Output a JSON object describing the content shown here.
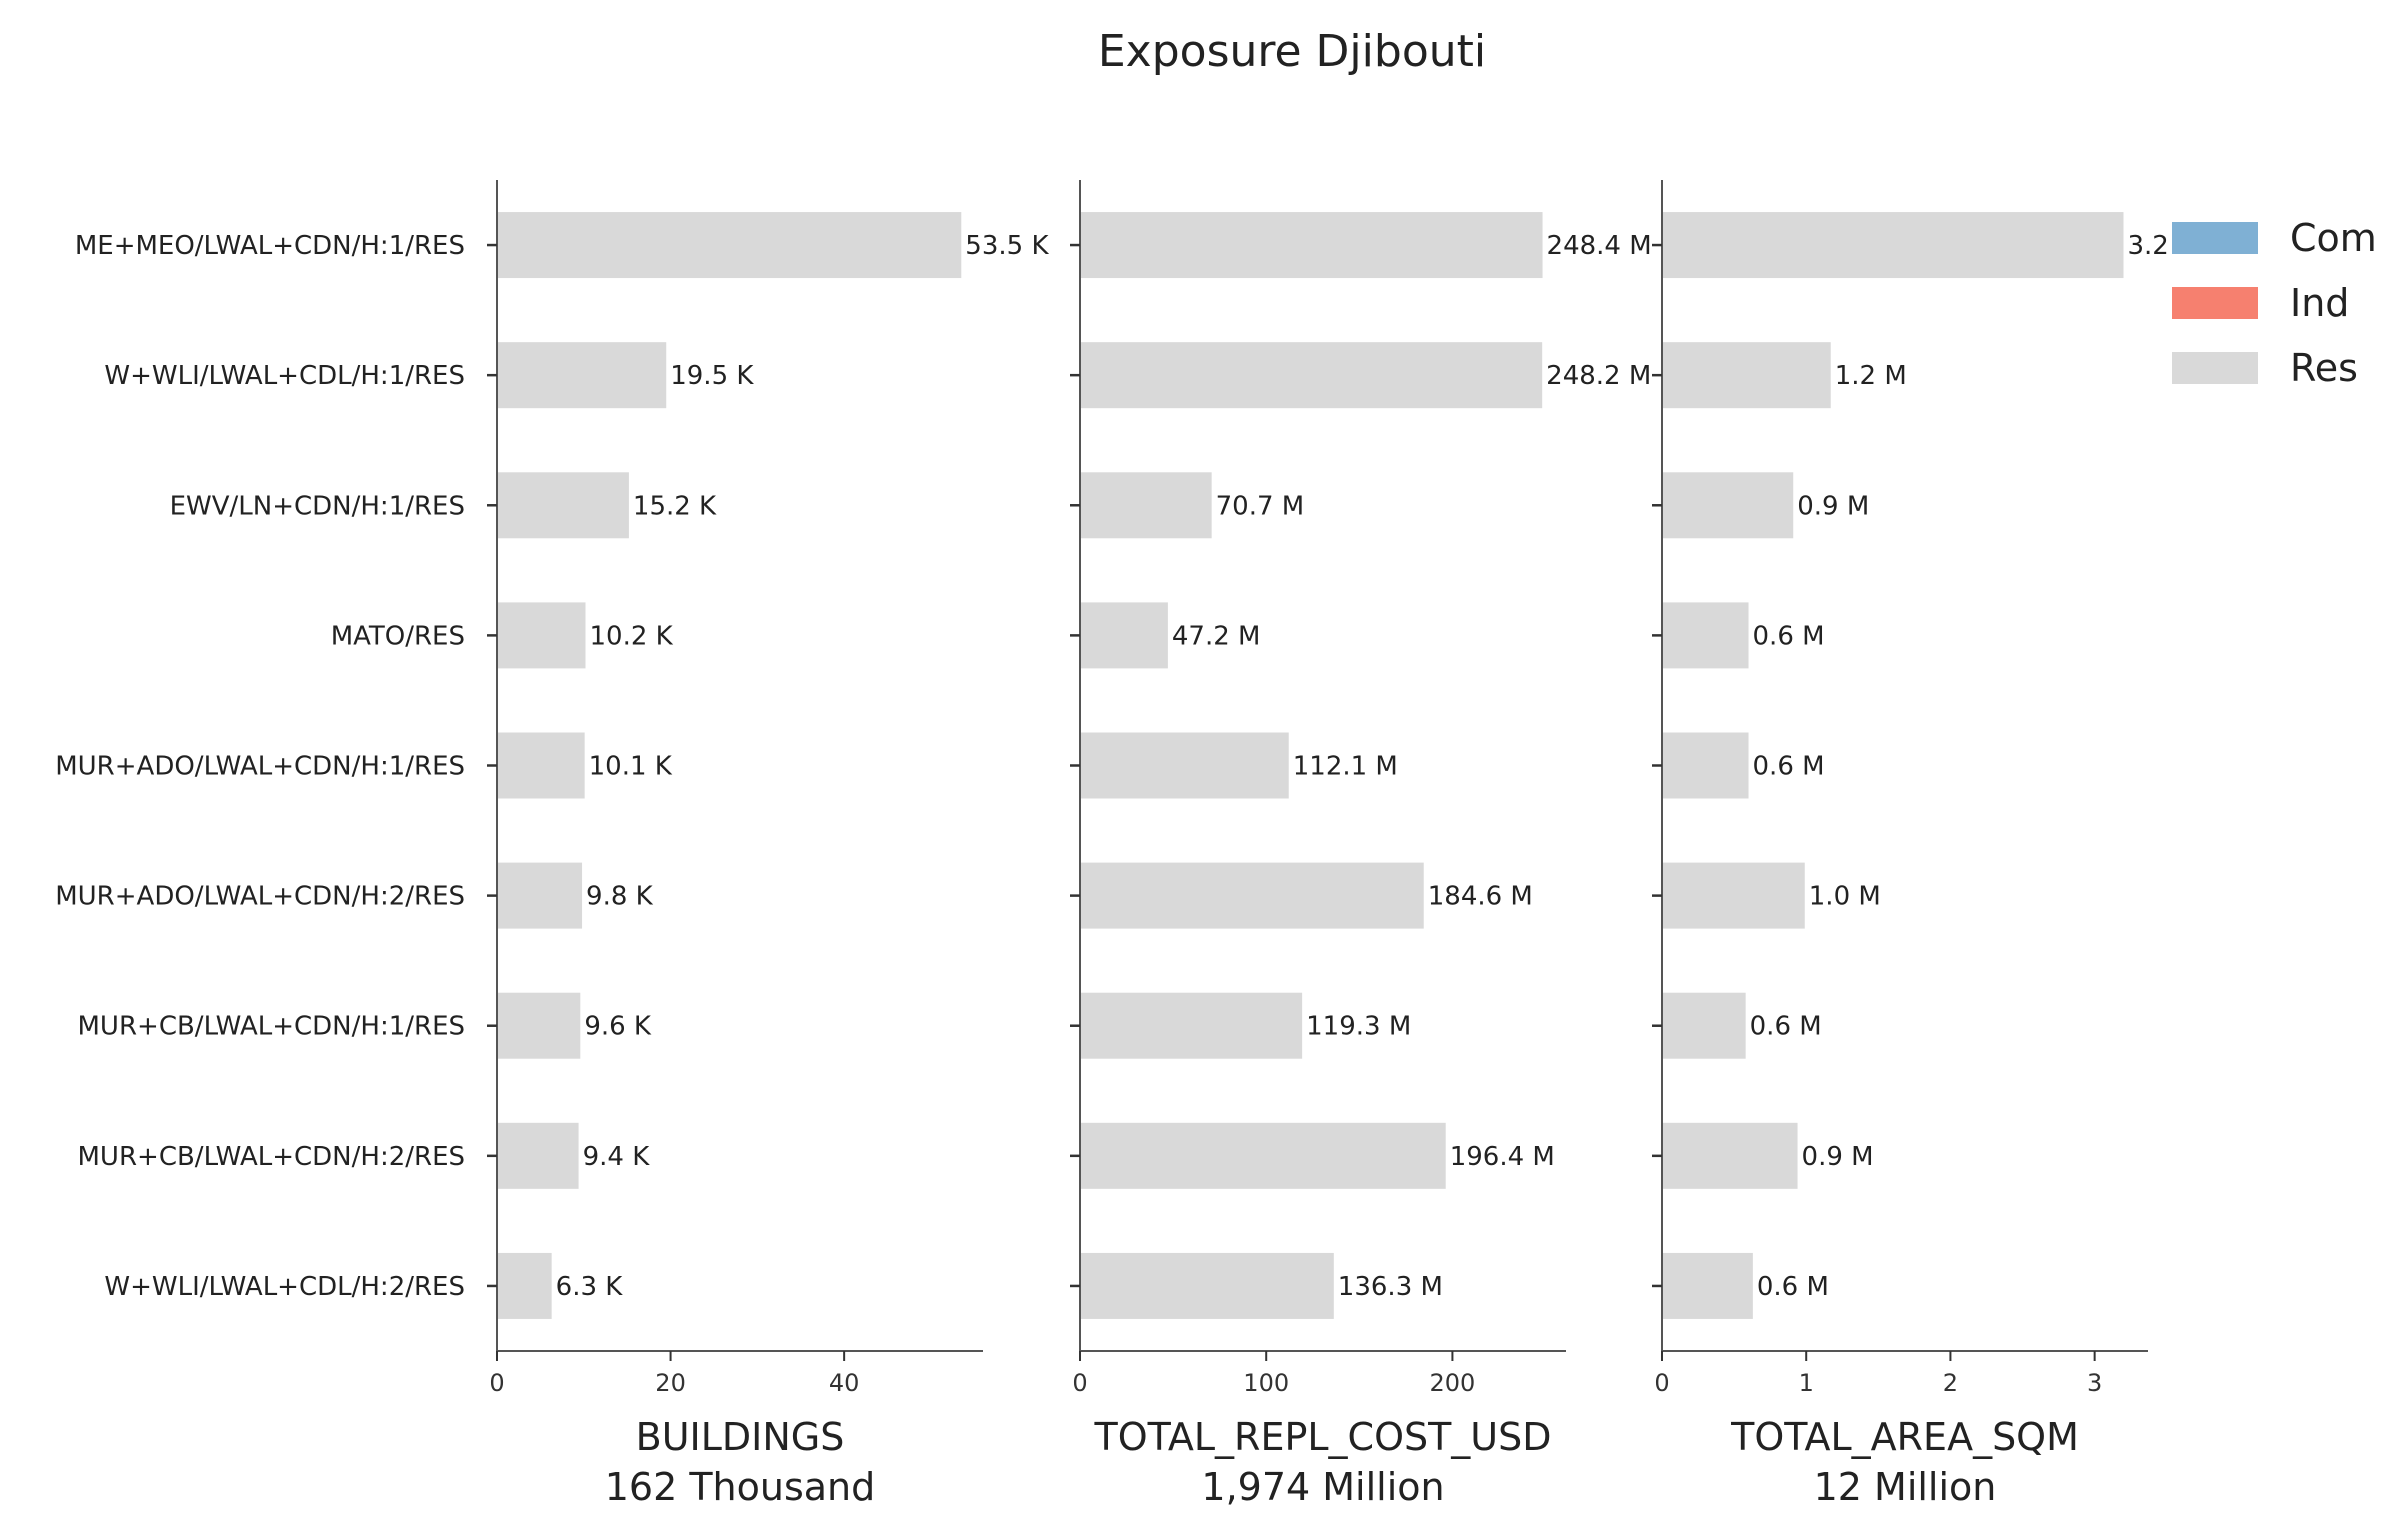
{
  "chart_data": {
    "type": "bar",
    "orientation": "horizontal",
    "title": "Exposure Djibouti",
    "categories": [
      "ME+MEO/LWAL+CDN/H:1/RES",
      "W+WLI/LWAL+CDL/H:1/RES",
      "EWV/LN+CDN/H:1/RES",
      "MATO/RES",
      "MUR+ADO/LWAL+CDN/H:1/RES",
      "MUR+ADO/LWAL+CDN/H:2/RES",
      "MUR+CB/LWAL+CDN/H:1/RES",
      "MUR+CB/LWAL+CDN/H:2/RES",
      "W+WLI/LWAL+CDL/H:2/RES"
    ],
    "legend": {
      "placement": "top-right",
      "entries": [
        {
          "label": "Com",
          "color": "#7fb0d4"
        },
        {
          "label": "Ind",
          "color": "#f6806f"
        },
        {
          "label": "Res",
          "color": "#d9d9d9"
        }
      ]
    },
    "bar_color": "#d9d9d9",
    "panels": [
      {
        "xlabel": "BUILDINGS",
        "subtitle": "162 Thousand",
        "xlim": [
          0,
          56
        ],
        "xticks": [
          0,
          20,
          40
        ],
        "series": [
          {
            "name": "Res",
            "values": [
              53.5,
              19.5,
              15.2,
              10.2,
              10.1,
              9.8,
              9.6,
              9.4,
              6.3
            ]
          }
        ],
        "bar_labels": [
          "53.5 K",
          "19.5 K",
          "15.2 K",
          "10.2 K",
          "10.1 K",
          "9.8 K",
          "9.6 K",
          "9.4 K",
          "6.3 K"
        ]
      },
      {
        "xlabel": "TOTAL_REPL_COST_USD",
        "subtitle": "1,974 Million",
        "xlim": [
          0,
          261
        ],
        "xticks": [
          0,
          100,
          200
        ],
        "series": [
          {
            "name": "Res",
            "values": [
              248.4,
              248.2,
              70.7,
              47.2,
              112.1,
              184.6,
              119.3,
              196.4,
              136.3
            ]
          }
        ],
        "bar_labels": [
          "248.4 M",
          "248.2 M",
          "70.7 M",
          "47.2 M",
          "112.1 M",
          "184.6 M",
          "119.3 M",
          "196.4 M",
          "136.3 M"
        ]
      },
      {
        "xlabel": "TOTAL_AREA_SQM",
        "subtitle": "12 Million",
        "xlim": [
          0,
          3.37
        ],
        "xticks": [
          0,
          1,
          2,
          3
        ],
        "series": [
          {
            "name": "Res",
            "values": [
              3.2,
              1.17,
              0.91,
              0.6,
              0.6,
              0.99,
              0.58,
              0.94,
              0.63
            ]
          }
        ],
        "bar_labels": [
          "3.2 M",
          "1.2 M",
          "0.9 M",
          "0.6 M",
          "0.6 M",
          "1.0 M",
          "0.6 M",
          "0.9 M",
          "0.6 M"
        ]
      }
    ]
  }
}
